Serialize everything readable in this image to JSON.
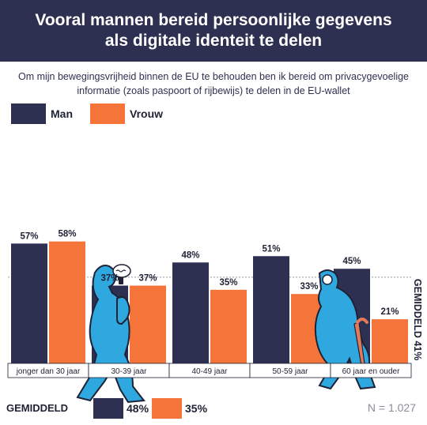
{
  "header": {
    "title_line1": "Vooral mannen bereid persoonlijke gegevens",
    "title_line2": "als digitale identeit te delen"
  },
  "subtitle": {
    "line1": "Om mijn bewegingsvrijheid binnen de EU te behouden ben ik bereid om privacygevoelige",
    "line2": "informatie (zoals paspoort of rijbewijs) te delen in de EU-wallet"
  },
  "legend": {
    "man_label": "Man",
    "vrouw_label": "Vrouw"
  },
  "colors": {
    "header_bg": "#2d3050",
    "man": "#2d3050",
    "vrouw": "#f5743a",
    "figure": "#2fa7df"
  },
  "chart_data": {
    "type": "bar",
    "categories": [
      "jonger dan 30 jaar",
      "30-39 jaar",
      "40-49 jaar",
      "50-59 jaar",
      "60 jaar en ouder"
    ],
    "series": [
      {
        "name": "Man",
        "values": [
          57,
          37,
          48,
          51,
          45
        ],
        "labels": [
          "57%",
          "37%",
          "48%",
          "51%",
          "45%"
        ]
      },
      {
        "name": "Vrouw",
        "values": [
          58,
          37,
          35,
          33,
          21
        ],
        "labels": [
          "58%",
          "37%",
          "35%",
          "33%",
          "21%"
        ]
      }
    ],
    "average": {
      "value": 41,
      "label": "GEMIDDELD 41%"
    },
    "ylim": [
      0,
      62
    ],
    "grid": false,
    "legend_position": "top-left"
  },
  "footer": {
    "gemiddeld_label": "GEMIDDELD",
    "man_avg": "48%",
    "vrouw_avg": "35%",
    "n_label": "N = 1.027"
  },
  "icons": [
    "walking-man-phone-icon",
    "elderly-man-cane-icon"
  ]
}
